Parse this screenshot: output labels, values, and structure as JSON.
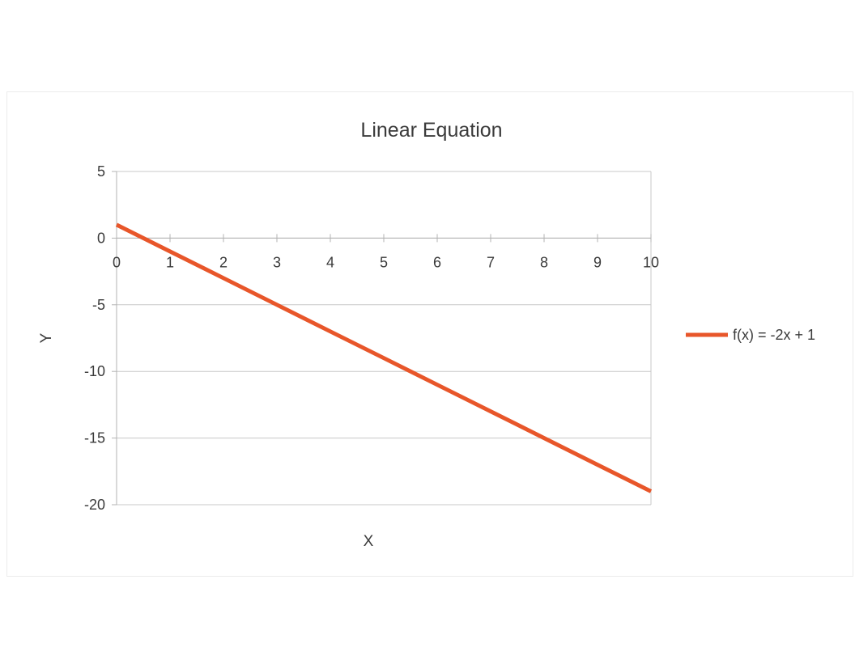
{
  "chart_data": {
    "type": "line",
    "title": "Linear Equation",
    "xlabel": "X",
    "ylabel": "Y",
    "xlim": [
      0,
      10
    ],
    "ylim": [
      -20,
      5
    ],
    "xticks": [
      0,
      1,
      2,
      3,
      4,
      5,
      6,
      7,
      8,
      9,
      10
    ],
    "yticks": [
      5,
      0,
      -5,
      -10,
      -15,
      -20
    ],
    "grid": "horizontal",
    "legend_position": "right",
    "series": [
      {
        "name": "f(x) = -2x + 1",
        "color": "#e8562a",
        "x": [
          0,
          1,
          2,
          3,
          4,
          5,
          6,
          7,
          8,
          9,
          10
        ],
        "y": [
          1,
          -1,
          -3,
          -5,
          -7,
          -9,
          -11,
          -13,
          -15,
          -17,
          -19
        ]
      }
    ]
  },
  "colors": {
    "gridline": "#c8c8c8",
    "axis": "#b3b3b3",
    "text": "#3b3b3b"
  }
}
